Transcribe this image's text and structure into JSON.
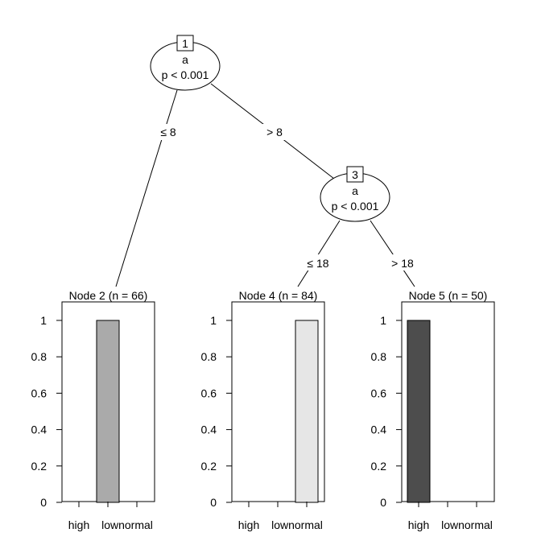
{
  "tree": {
    "inner_nodes": [
      {
        "id": "1",
        "variable": "a",
        "pvalue": "p < 0.001"
      },
      {
        "id": "3",
        "variable": "a",
        "pvalue": "p < 0.001"
      }
    ],
    "edges": [
      {
        "from": "1",
        "to": "2",
        "label": "≤ 8"
      },
      {
        "from": "1",
        "to": "3",
        "label": "> 8"
      },
      {
        "from": "3",
        "to": "4",
        "label": "≤ 18"
      },
      {
        "from": "3",
        "to": "5",
        "label": "> 18"
      }
    ]
  },
  "chart_data": [
    {
      "type": "bar",
      "title": "Node 2 (n = 66)",
      "categories": [
        "high",
        "low",
        "normal"
      ],
      "values": [
        0,
        1,
        0
      ],
      "ylim": [
        0,
        1
      ],
      "yticks": [
        "0",
        "0.2",
        "0.4",
        "0.6",
        "0.8",
        "1"
      ],
      "xtick_labels": [
        "high",
        "lownormal"
      ],
      "bar_color": "#aaaaaa"
    },
    {
      "type": "bar",
      "title": "Node 4 (n = 84)",
      "categories": [
        "high",
        "low",
        "normal"
      ],
      "values": [
        0,
        0,
        1
      ],
      "ylim": [
        0,
        1
      ],
      "yticks": [
        "0",
        "0.2",
        "0.4",
        "0.6",
        "0.8",
        "1"
      ],
      "xtick_labels": [
        "high",
        "lownormal"
      ],
      "bar_color": "#e6e6e6"
    },
    {
      "type": "bar",
      "title": "Node 5 (n = 50)",
      "categories": [
        "high",
        "low",
        "normal"
      ],
      "values": [
        1,
        0,
        0
      ],
      "ylim": [
        0,
        1
      ],
      "yticks": [
        "0",
        "0.2",
        "0.4",
        "0.6",
        "0.8",
        "1"
      ],
      "xtick_labels": [
        "high",
        "lownormal"
      ],
      "bar_color": "#4d4d4d"
    }
  ]
}
